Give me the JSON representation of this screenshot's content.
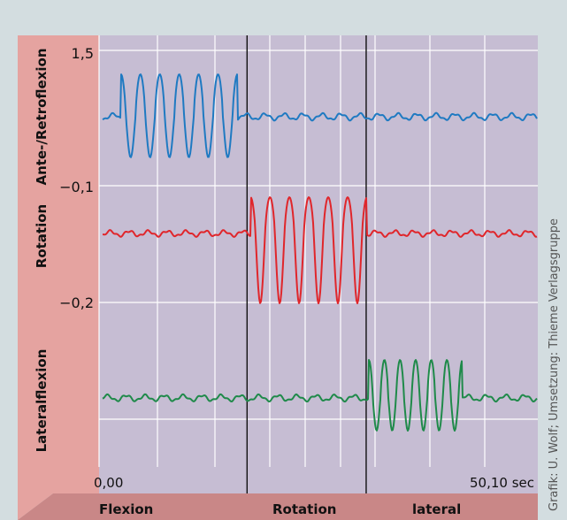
{
  "credit": "Grafik: U. Wolf; Umsetzung: Thieme Verlagsgruppe",
  "colors": {
    "outer_bg": "#d3dde0",
    "plot_bg": "#c6bdd3",
    "left_band": "#e5a3a0",
    "bottom_band": "#c98787",
    "blue": "#1f7ac2",
    "red": "#e0262b",
    "green": "#1f8a4a",
    "grid": "#ffffff",
    "divider": "#111111"
  },
  "chart_data": {
    "type": "line",
    "title": "",
    "xlabel": "",
    "ylabel": "",
    "x_range": [
      0,
      50.1
    ],
    "x_unit": "sec",
    "x_tick_labels": {
      "start": "0,00",
      "end": "50,10 sec"
    },
    "y_tick_labels": [
      "1,5",
      "−0,1",
      "−0,2"
    ],
    "row_labels": [
      "Ante-/Retroflexion",
      "Rotation",
      "Lateralflexion"
    ],
    "phase_labels": [
      "Flexion",
      "Rotation",
      "lateral"
    ],
    "phase_boundaries_sec": [
      16.9,
      30.5
    ],
    "grid": true,
    "series": [
      {
        "name": "Ante-/Retroflexion",
        "color_key": "blue",
        "active_window_sec": [
          2.5,
          15.8
        ],
        "cycles": 6
      },
      {
        "name": "Rotation",
        "color_key": "red",
        "active_window_sec": [
          17.3,
          30.6
        ],
        "cycles": 6
      },
      {
        "name": "Lateralflexion",
        "color_key": "green",
        "active_window_sec": [
          30.8,
          41.5
        ],
        "cycles": 6
      }
    ]
  }
}
